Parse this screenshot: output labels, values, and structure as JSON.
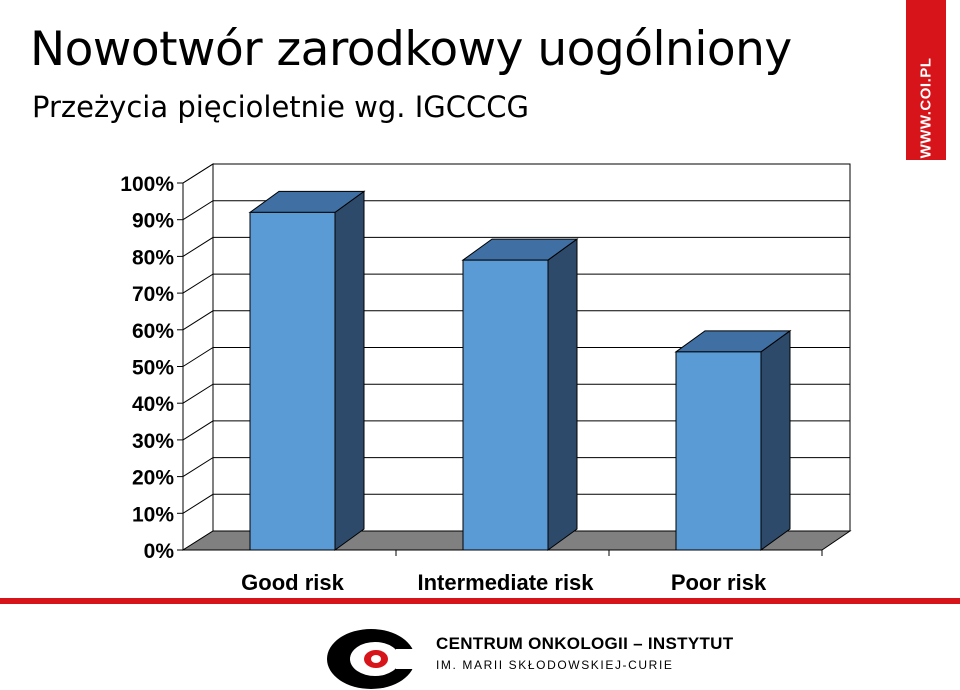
{
  "header": {
    "title": "Nowotwór zarodkowy uogólniony",
    "subtitle": "Przeżycia pięcioletnie wg. IGCCCG"
  },
  "side_tag": {
    "text": "WWW.COI.PL",
    "color": "#d7141a"
  },
  "footer": {
    "org_name": "CENTRUM ONKOLOGII – INSTYTUT",
    "org_sub": "IM. MARII SKŁODOWSKIEJ-CURIE",
    "logo_icon": "coi-logo-icon",
    "accent": "#d7141a"
  },
  "chart_data": {
    "type": "bar",
    "categories": [
      "Good risk",
      "Intermediate risk",
      "Poor risk"
    ],
    "values": [
      92,
      79,
      54
    ],
    "ylim": [
      0,
      100
    ],
    "yticks": [
      "0%",
      "10%",
      "20%",
      "30%",
      "40%",
      "50%",
      "60%",
      "70%",
      "80%",
      "90%",
      "100%"
    ],
    "title": "",
    "xlabel": "",
    "ylabel": "",
    "grid": true,
    "legend": "none",
    "bar_color": "#5b9bd5",
    "floor_color": "#808080"
  }
}
